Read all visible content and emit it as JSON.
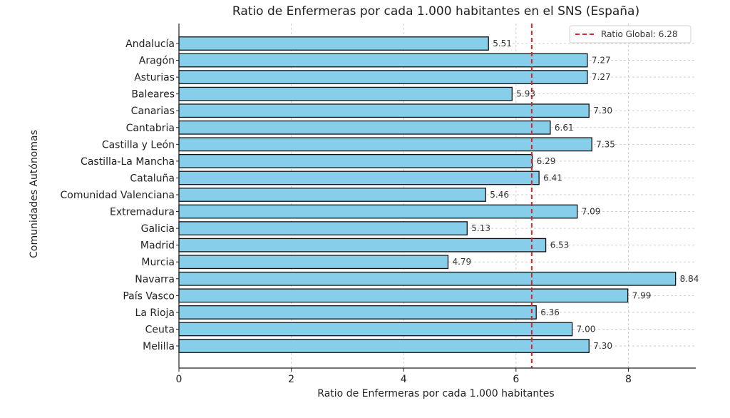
{
  "colors": {
    "bar_fill": "#87CEEB",
    "bar_stroke": "#111111",
    "reference_line": "#d62728",
    "grid": "#cfcfcf",
    "axis": "#222222"
  },
  "chart_data": {
    "type": "bar",
    "orientation": "horizontal",
    "title": "Ratio de Enfermeras por cada 1.000 habitantes en el SNS (España)",
    "xlabel": "Ratio de Enfermeras por cada 1.000 habitantes",
    "ylabel": "Comunidades Autónomas",
    "xlim": [
      0,
      9.2
    ],
    "xticks": [
      0,
      2,
      4,
      6,
      8
    ],
    "grid": true,
    "legend_position": "top-right",
    "categories": [
      "Andalucía",
      "Aragón",
      "Asturias",
      "Baleares",
      "Canarias",
      "Cantabria",
      "Castilla y León",
      "Castilla-La Mancha",
      "Cataluña",
      "Comunidad Valenciana",
      "Extremadura",
      "Galicia",
      "Madrid",
      "Murcia",
      "Navarra",
      "País Vasco",
      "La Rioja",
      "Ceuta",
      "Melilla"
    ],
    "values": [
      5.51,
      7.27,
      7.27,
      5.93,
      7.3,
      6.61,
      7.35,
      6.29,
      6.41,
      5.46,
      7.09,
      5.13,
      6.53,
      4.79,
      8.84,
      7.99,
      6.36,
      7.0,
      7.3
    ],
    "value_labels": [
      "5.51",
      "7.27",
      "7.27",
      "5.93",
      "7.30",
      "6.61",
      "7.35",
      "6.29",
      "6.41",
      "5.46",
      "7.09",
      "5.13",
      "6.53",
      "4.79",
      "8.84",
      "7.99",
      "6.36",
      "7.00",
      "7.30"
    ],
    "reference_line": {
      "value": 6.28,
      "label": "Ratio Global: 6.28",
      "style": "dashed"
    }
  }
}
